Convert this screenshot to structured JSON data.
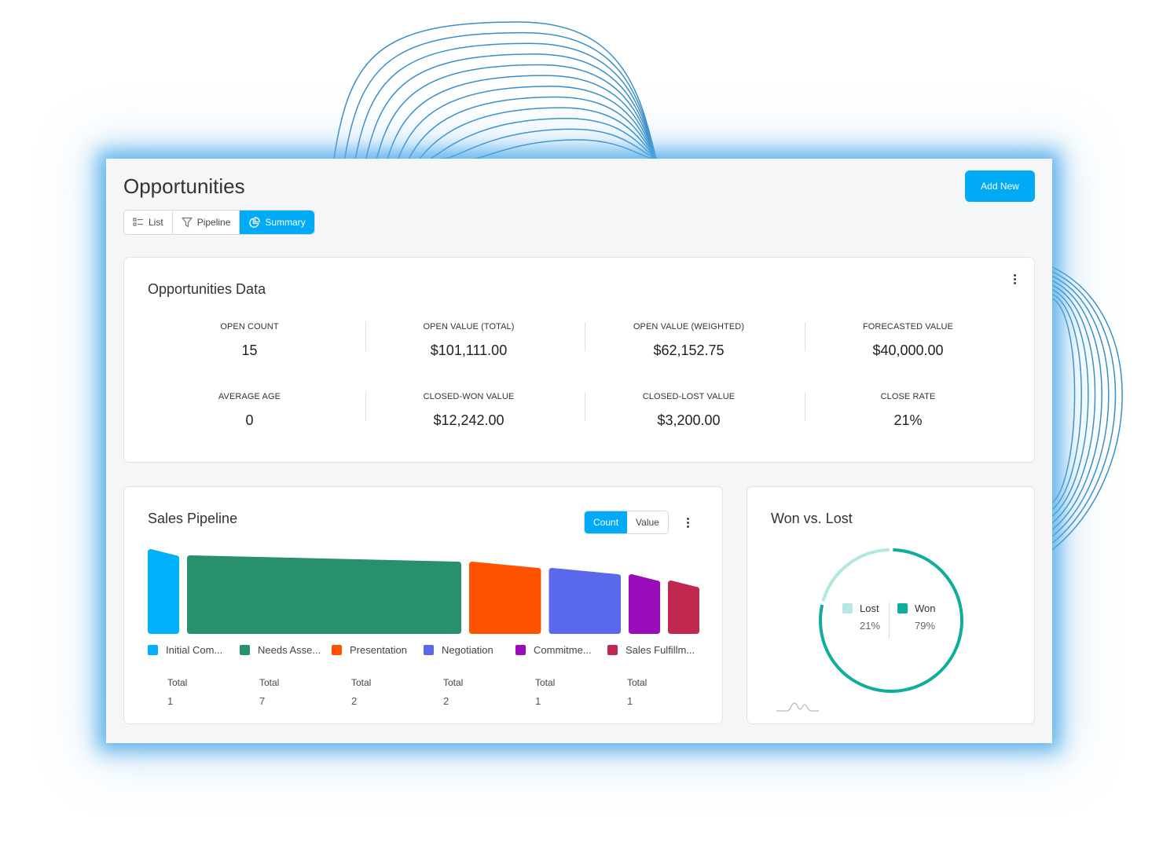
{
  "page": {
    "title": "Opportunities",
    "add_new_label": "Add New",
    "tabs": [
      {
        "label": "List",
        "icon": "list-icon",
        "active": false
      },
      {
        "label": "Pipeline",
        "icon": "filter-icon",
        "active": false
      },
      {
        "label": "Summary",
        "icon": "pie-chart-icon",
        "active": true
      }
    ]
  },
  "colors": {
    "accent": "#00aaf5",
    "won": "#0fae9a",
    "lost": "#b1e8e2"
  },
  "opportunities_data": {
    "title": "Opportunities Data",
    "metrics": [
      {
        "label": "OPEN COUNT",
        "value": "15"
      },
      {
        "label": "OPEN VALUE (TOTAL)",
        "value": "$101,111.00"
      },
      {
        "label": "OPEN VALUE (WEIGHTED)",
        "value": "$62,152.75"
      },
      {
        "label": "FORECASTED VALUE",
        "value": "$40,000.00"
      },
      {
        "label": "AVERAGE AGE",
        "value": "0"
      },
      {
        "label": "CLOSED-WON VALUE",
        "value": "$12,242.00"
      },
      {
        "label": "CLOSED-LOST VALUE",
        "value": "$3,200.00"
      },
      {
        "label": "CLOSE RATE",
        "value": "21%"
      }
    ]
  },
  "sales_pipeline": {
    "title": "Sales Pipeline",
    "toggle": {
      "count_label": "Count",
      "value_label": "Value",
      "selected": "Count"
    },
    "stages": [
      {
        "name": "Initial Com...",
        "total_label": "Total",
        "total": "1",
        "color": "#00b0f8"
      },
      {
        "name": "Needs Asse...",
        "total_label": "Total",
        "total": "7",
        "color": "#28906e"
      },
      {
        "name": "Presentation",
        "total_label": "Total",
        "total": "2",
        "color": "#ff5200"
      },
      {
        "name": "Negotiation",
        "total_label": "Total",
        "total": "2",
        "color": "#5a68ec"
      },
      {
        "name": "Commitme...",
        "total_label": "Total",
        "total": "1",
        "color": "#9a0dba"
      },
      {
        "name": "Sales Fulfillm...",
        "total_label": "Total",
        "total": "1",
        "color": "#c02850"
      }
    ]
  },
  "won_vs_lost": {
    "title": "Won vs. Lost",
    "items": [
      {
        "name": "Lost",
        "percent": "21%",
        "color": "#b1e8e2"
      },
      {
        "name": "Won",
        "percent": "79%",
        "color": "#0fae9a"
      }
    ]
  },
  "chart_data": [
    {
      "type": "bar",
      "title": "Sales Pipeline",
      "categories": [
        "Initial Com...",
        "Needs Asse...",
        "Presentation",
        "Negotiation",
        "Commitme...",
        "Sales Fulfillm..."
      ],
      "values": [
        1,
        7,
        2,
        2,
        1,
        1
      ],
      "legend": "bottom"
    },
    {
      "type": "pie",
      "title": "Won vs. Lost",
      "categories": [
        "Lost",
        "Won"
      ],
      "values": [
        21,
        79
      ],
      "legend": "center"
    }
  ]
}
